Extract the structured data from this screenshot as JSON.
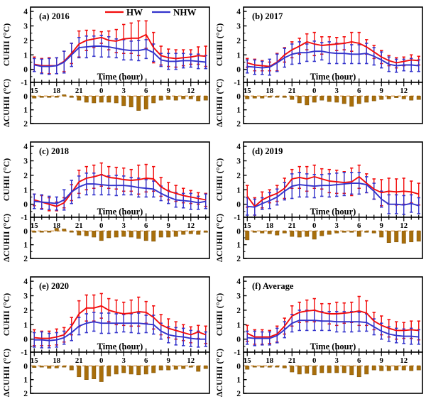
{
  "figure": {
    "ylabel_top": "CUHII (°C)",
    "ylabel_bottom": "ΔCUHII (°C)",
    "xlabel": "Time (hour)",
    "legend": [
      {
        "label": "HW",
        "color": "#f20c0c"
      },
      {
        "label": "NHW",
        "color": "#3333cc"
      }
    ],
    "colors": {
      "hw": "#f20c0c",
      "nhw": "#3333cc",
      "bar": "#a86e0a",
      "bar_edge": "#7a4e06",
      "zero_dash": "#e2aa66",
      "axis": "#000000",
      "background": "#ffffff"
    }
  },
  "chart_data": {
    "type": "line",
    "subpanel_type": "bar",
    "x_hours": [
      15,
      16,
      17,
      18,
      19,
      20,
      21,
      22,
      23,
      0,
      1,
      2,
      3,
      4,
      5,
      6,
      7,
      8,
      9,
      10,
      11,
      12,
      13,
      14
    ],
    "x_tick_labels": [
      "15",
      "18",
      "21",
      "0",
      "3",
      "6",
      "9",
      "12"
    ],
    "x_tick_hour_indices": [
      0,
      3,
      6,
      9,
      12,
      15,
      18,
      21
    ],
    "top_axis": {
      "ticks": [
        0,
        1,
        2,
        3,
        4
      ],
      "range": [
        -0.9,
        4.3
      ],
      "minor_step": 0.5
    },
    "bottom_axis": {
      "ticks": [
        -1,
        0,
        1,
        2
      ],
      "range": [
        -1,
        2
      ],
      "inverted": true,
      "minor_step": 0.5
    },
    "series_names": [
      "HW",
      "NHW"
    ],
    "panels": [
      {
        "id": "a",
        "label": "(a) 2016",
        "hw": [
          0.35,
          0.25,
          0.25,
          0.25,
          0.55,
          1.1,
          1.75,
          2.0,
          2.1,
          2.2,
          2.0,
          1.95,
          2.1,
          2.15,
          2.15,
          2.4,
          1.5,
          0.95,
          0.8,
          0.75,
          0.8,
          0.85,
          0.95,
          0.9
        ],
        "hw_err": [
          0.5,
          0.5,
          0.55,
          0.55,
          0.7,
          0.7,
          0.9,
          0.7,
          0.6,
          0.4,
          0.65,
          0.8,
          1.0,
          1.05,
          1.2,
          0.95,
          1.05,
          0.65,
          0.6,
          0.6,
          0.55,
          0.5,
          0.6,
          0.7
        ],
        "nhw": [
          0.3,
          0.2,
          0.2,
          0.25,
          0.5,
          1.0,
          1.5,
          1.55,
          1.6,
          1.6,
          1.55,
          1.45,
          1.35,
          1.3,
          1.3,
          1.4,
          1.15,
          0.65,
          0.55,
          0.55,
          0.6,
          0.6,
          0.55,
          0.5
        ],
        "nhw_err": [
          0.45,
          0.5,
          0.55,
          0.55,
          0.75,
          0.8,
          0.7,
          0.75,
          0.7,
          0.75,
          0.7,
          0.65,
          0.7,
          0.65,
          0.7,
          0.65,
          0.6,
          0.45,
          0.55,
          0.55,
          0.5,
          0.45,
          0.5,
          0.45
        ],
        "delta": [
          0.15,
          0.1,
          0.1,
          0.05,
          -0.1,
          0.1,
          0.3,
          0.45,
          0.5,
          0.45,
          0.45,
          0.5,
          0.7,
          0.8,
          1.05,
          0.95,
          0.5,
          0.3,
          0.25,
          0.3,
          0.2,
          0.2,
          0.35,
          0.3
        ]
      },
      {
        "id": "b",
        "label": "(b) 2017",
        "hw": [
          0.45,
          0.3,
          0.25,
          0.2,
          0.5,
          1.0,
          1.35,
          1.6,
          1.9,
          1.75,
          1.65,
          1.7,
          1.75,
          1.8,
          1.9,
          1.8,
          1.55,
          1.2,
          0.85,
          0.6,
          0.45,
          0.55,
          0.65,
          0.6
        ],
        "hw_err": [
          0.3,
          0.4,
          0.35,
          0.3,
          0.6,
          0.5,
          0.55,
          0.55,
          0.55,
          0.8,
          0.6,
          0.55,
          0.45,
          0.45,
          0.65,
          0.75,
          0.5,
          0.45,
          0.45,
          0.35,
          0.35,
          0.3,
          0.35,
          0.3
        ],
        "nhw": [
          0.2,
          0.15,
          0.1,
          0.15,
          0.45,
          0.8,
          1.05,
          1.15,
          1.15,
          1.25,
          1.25,
          1.15,
          1.1,
          1.1,
          1.05,
          1.05,
          1.1,
          0.9,
          0.65,
          0.35,
          0.25,
          0.3,
          0.3,
          0.25
        ],
        "nhw_err": [
          0.45,
          0.5,
          0.45,
          0.55,
          0.6,
          0.65,
          0.7,
          0.75,
          0.6,
          0.7,
          0.6,
          0.75,
          0.7,
          0.7,
          0.65,
          0.65,
          0.7,
          0.6,
          0.55,
          0.5,
          0.45,
          0.4,
          0.45,
          0.4
        ],
        "delta": [
          0.2,
          0.15,
          0.15,
          0.05,
          0.03,
          0.1,
          0.25,
          0.5,
          0.65,
          0.45,
          0.3,
          0.4,
          0.45,
          0.55,
          0.75,
          0.55,
          0.45,
          0.35,
          0.25,
          0.2,
          0.12,
          0.2,
          0.3,
          0.25
        ]
      },
      {
        "id": "c",
        "label": "(c) 2018",
        "hw": [
          0.3,
          0.15,
          0.0,
          -0.15,
          0.1,
          0.8,
          1.55,
          1.8,
          1.9,
          2.05,
          1.85,
          1.8,
          1.7,
          1.65,
          1.7,
          1.8,
          1.75,
          1.2,
          0.9,
          0.75,
          0.6,
          0.5,
          0.4,
          0.3
        ],
        "hw_err": [
          0.4,
          0.45,
          0.45,
          0.3,
          0.35,
          0.55,
          0.8,
          0.8,
          0.8,
          0.8,
          0.75,
          0.75,
          0.8,
          0.75,
          1.0,
          0.95,
          0.85,
          0.65,
          0.6,
          0.55,
          0.5,
          0.45,
          0.4,
          0.45
        ],
        "nhw": [
          0.2,
          0.15,
          0.1,
          0.05,
          0.3,
          0.85,
          1.2,
          1.4,
          1.4,
          1.35,
          1.3,
          1.3,
          1.3,
          1.25,
          1.15,
          1.1,
          1.05,
          0.75,
          0.5,
          0.3,
          0.25,
          0.2,
          0.1,
          0.2
        ],
        "nhw_err": [
          0.5,
          0.5,
          0.45,
          0.45,
          0.7,
          0.8,
          0.75,
          0.75,
          0.75,
          0.7,
          0.65,
          0.7,
          0.65,
          0.6,
          0.65,
          0.6,
          0.55,
          0.5,
          0.45,
          0.5,
          0.5,
          0.55,
          0.45,
          0.5
        ],
        "delta": [
          0.1,
          0.05,
          0.08,
          -0.2,
          -0.15,
          0.05,
          0.3,
          0.35,
          0.45,
          0.7,
          0.5,
          0.45,
          0.4,
          0.45,
          0.55,
          0.7,
          0.75,
          0.45,
          0.45,
          0.4,
          0.25,
          0.2,
          0.25,
          0.1
        ]
      },
      {
        "id": "d",
        "label": "(d) 2019",
        "hw": [
          0.55,
          -0.15,
          0.3,
          0.55,
          0.75,
          1.1,
          1.75,
          1.85,
          1.75,
          1.9,
          1.75,
          1.6,
          1.55,
          1.5,
          1.55,
          1.9,
          1.45,
          1.05,
          0.8,
          0.9,
          0.85,
          0.9,
          0.85,
          0.7
        ],
        "hw_err": [
          0.75,
          0.6,
          0.55,
          0.45,
          0.55,
          0.7,
          0.65,
          0.75,
          0.85,
          0.8,
          0.7,
          0.8,
          0.8,
          0.75,
          0.95,
          0.8,
          0.65,
          0.7,
          0.9,
          0.9,
          0.9,
          0.9,
          0.75,
          0.75
        ],
        "nhw": [
          -0.15,
          -0.2,
          0.05,
          0.25,
          0.5,
          0.9,
          1.25,
          1.35,
          1.3,
          1.25,
          1.3,
          1.3,
          1.35,
          1.4,
          1.45,
          1.45,
          1.35,
          0.9,
          0.35,
          0.0,
          0.0,
          -0.05,
          0.05,
          -0.1
        ],
        "nhw_err": [
          0.6,
          0.55,
          0.4,
          0.55,
          0.55,
          0.6,
          0.85,
          0.85,
          0.8,
          0.8,
          0.75,
          0.8,
          0.8,
          0.8,
          0.75,
          0.75,
          0.55,
          0.55,
          0.55,
          0.65,
          0.65,
          0.65,
          0.6,
          0.55
        ],
        "delta": [
          0.65,
          0.1,
          0.15,
          0.2,
          0.3,
          0.15,
          0.4,
          0.45,
          0.4,
          0.6,
          0.35,
          0.25,
          0.15,
          0.1,
          0.1,
          0.4,
          0.1,
          0.15,
          0.45,
          0.85,
          0.8,
          0.9,
          0.8,
          0.75
        ]
      },
      {
        "id": "e",
        "label": "(e) 2020",
        "hw": [
          0.1,
          0.05,
          0.05,
          0.15,
          0.3,
          0.9,
          1.75,
          2.15,
          2.15,
          2.3,
          2.0,
          1.85,
          1.75,
          1.8,
          1.9,
          1.85,
          1.5,
          1.0,
          0.75,
          0.6,
          0.45,
          0.3,
          0.5,
          0.3
        ],
        "hw_err": [
          0.55,
          0.5,
          0.5,
          0.55,
          0.5,
          0.6,
          0.9,
          0.9,
          0.9,
          0.85,
          0.8,
          0.85,
          0.8,
          0.9,
          1.0,
          0.75,
          0.8,
          0.7,
          0.65,
          0.6,
          0.55,
          0.55,
          0.45,
          0.6
        ],
        "nhw": [
          -0.05,
          -0.05,
          -0.1,
          -0.05,
          0.1,
          0.45,
          0.9,
          1.1,
          1.2,
          1.1,
          1.1,
          1.1,
          1.1,
          1.1,
          1.1,
          1.05,
          1.0,
          0.55,
          0.3,
          0.2,
          0.15,
          0.05,
          0.0,
          0.0
        ],
        "nhw_err": [
          0.5,
          0.55,
          0.5,
          0.5,
          0.45,
          0.55,
          0.6,
          0.65,
          0.65,
          0.7,
          0.7,
          0.65,
          0.6,
          0.65,
          0.7,
          0.6,
          0.65,
          0.55,
          0.55,
          0.6,
          0.6,
          0.55,
          0.55,
          0.5
        ],
        "delta": [
          0.12,
          0.05,
          0.18,
          0.15,
          0.07,
          0.3,
          0.8,
          1.0,
          0.95,
          1.15,
          0.75,
          0.6,
          0.5,
          0.6,
          0.65,
          0.6,
          0.5,
          0.3,
          0.3,
          0.25,
          0.2,
          0.1,
          0.4,
          0.2
        ]
      },
      {
        "id": "f",
        "label": "(f) Average",
        "hw": [
          0.4,
          0.15,
          0.15,
          0.15,
          0.35,
          0.9,
          1.6,
          1.85,
          1.95,
          2.0,
          1.85,
          1.75,
          1.75,
          1.8,
          1.85,
          1.95,
          1.8,
          1.25,
          0.95,
          0.75,
          0.6,
          0.6,
          0.65,
          0.6
        ],
        "hw_err": [
          0.55,
          0.5,
          0.5,
          0.45,
          0.55,
          0.55,
          0.7,
          0.7,
          0.75,
          0.8,
          0.6,
          0.7,
          0.8,
          0.7,
          0.7,
          1.0,
          0.85,
          0.6,
          0.65,
          0.6,
          0.6,
          0.55,
          0.6,
          0.65
        ],
        "nhw": [
          0.1,
          0.05,
          0.05,
          0.05,
          0.25,
          0.65,
          1.1,
          1.3,
          1.3,
          1.3,
          1.25,
          1.25,
          1.2,
          1.2,
          1.2,
          1.2,
          1.15,
          0.85,
          0.55,
          0.35,
          0.25,
          0.2,
          0.2,
          0.15
        ],
        "nhw_err": [
          0.45,
          0.5,
          0.45,
          0.45,
          0.5,
          0.55,
          0.6,
          0.7,
          0.7,
          0.7,
          0.65,
          0.65,
          0.7,
          0.7,
          0.7,
          0.65,
          0.6,
          0.55,
          0.55,
          0.5,
          0.5,
          0.5,
          0.55,
          0.5
        ],
        "delta": [
          0.25,
          0.08,
          0.1,
          0.1,
          0.03,
          0.15,
          0.45,
          0.6,
          0.55,
          0.65,
          0.5,
          0.5,
          0.5,
          0.5,
          0.65,
          0.8,
          0.6,
          0.3,
          0.35,
          0.35,
          0.3,
          0.3,
          0.35,
          0.3
        ]
      }
    ]
  }
}
